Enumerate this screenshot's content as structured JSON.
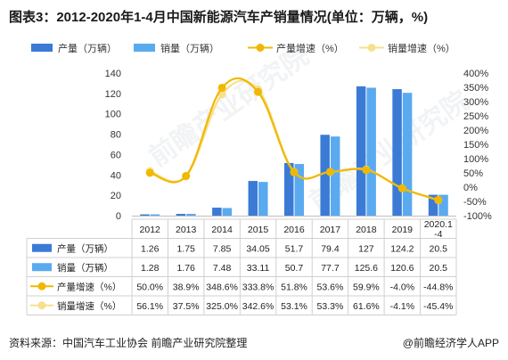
{
  "title": "图表3：2012-2020年1-4月中国新能源汽车产销量情况(单位：万辆，%)",
  "footer": {
    "source": "资料来源：中国汽车工业协会 前瞻产业研究院整理",
    "brand": "@前瞻经济学人APP"
  },
  "watermark": "前瞻产业研究院",
  "colors": {
    "production": "#3b7bd6",
    "sales": "#5aaaf0",
    "prod_growth": "#f0b800",
    "sales_growth": "#f7e08c"
  },
  "chart_data": {
    "type": "bar+line",
    "title": "图表3：2012-2020年1-4月中国新能源汽车产销量情况(单位：万辆，%)",
    "categories": [
      "2012",
      "2013",
      "2014",
      "2015",
      "2016",
      "2017",
      "2018",
      "2019",
      "2020.1-4"
    ],
    "category_lines": [
      [
        "2012"
      ],
      [
        "2013"
      ],
      [
        "2014"
      ],
      [
        "2015"
      ],
      [
        "2016"
      ],
      [
        "2017"
      ],
      [
        "2018"
      ],
      [
        "2019"
      ],
      [
        "2020.1",
        "-4"
      ]
    ],
    "left_axis": {
      "ylim": [
        0,
        140
      ],
      "ticks": [
        "0",
        "20",
        "40",
        "60",
        "80",
        "100",
        "120",
        "140"
      ]
    },
    "right_axis": {
      "ylim": [
        -100,
        400
      ],
      "ticks": [
        "-100%",
        "-50%",
        "0%",
        "50%",
        "100%",
        "150%",
        "200%",
        "250%",
        "300%",
        "350%",
        "400%"
      ]
    },
    "series": [
      {
        "name": "产量（万辆）",
        "type": "bar",
        "axis": "left",
        "values": [
          1.26,
          1.75,
          7.85,
          34.05,
          51.7,
          79.4,
          127,
          124.2,
          20.5
        ],
        "labels": [
          "1.26",
          "1.75",
          "7.85",
          "34.05",
          "51.7",
          "79.4",
          "127",
          "124.2",
          "20.5"
        ]
      },
      {
        "name": "销量（万辆）",
        "type": "bar",
        "axis": "left",
        "values": [
          1.28,
          1.76,
          7.48,
          33.11,
          50.7,
          77.7,
          125.6,
          120.6,
          20.5
        ],
        "labels": [
          "1.28",
          "1.76",
          "7.48",
          "33.11",
          "50.7",
          "77.7",
          "125.6",
          "120.6",
          "20.5"
        ]
      },
      {
        "name": "产量增速（%）",
        "type": "line",
        "axis": "right",
        "values": [
          50.0,
          38.9,
          348.6,
          333.8,
          51.8,
          53.6,
          59.9,
          -4.0,
          -44.8
        ],
        "labels": [
          "50.0%",
          "38.9%",
          "348.6%",
          "333.8%",
          "51.8%",
          "53.6%",
          "59.9%",
          "-4.0%",
          "-44.8%"
        ]
      },
      {
        "name": "销量增速（%）",
        "type": "line",
        "axis": "right",
        "values": [
          56.1,
          37.5,
          325.0,
          342.6,
          53.1,
          53.3,
          61.6,
          -4.1,
          -45.4
        ],
        "labels": [
          "56.1%",
          "37.5%",
          "325.0%",
          "342.6%",
          "53.1%",
          "53.3%",
          "61.6%",
          "-4.1%",
          "-45.4%"
        ]
      }
    ],
    "legend_placement": "top",
    "grid": false
  }
}
